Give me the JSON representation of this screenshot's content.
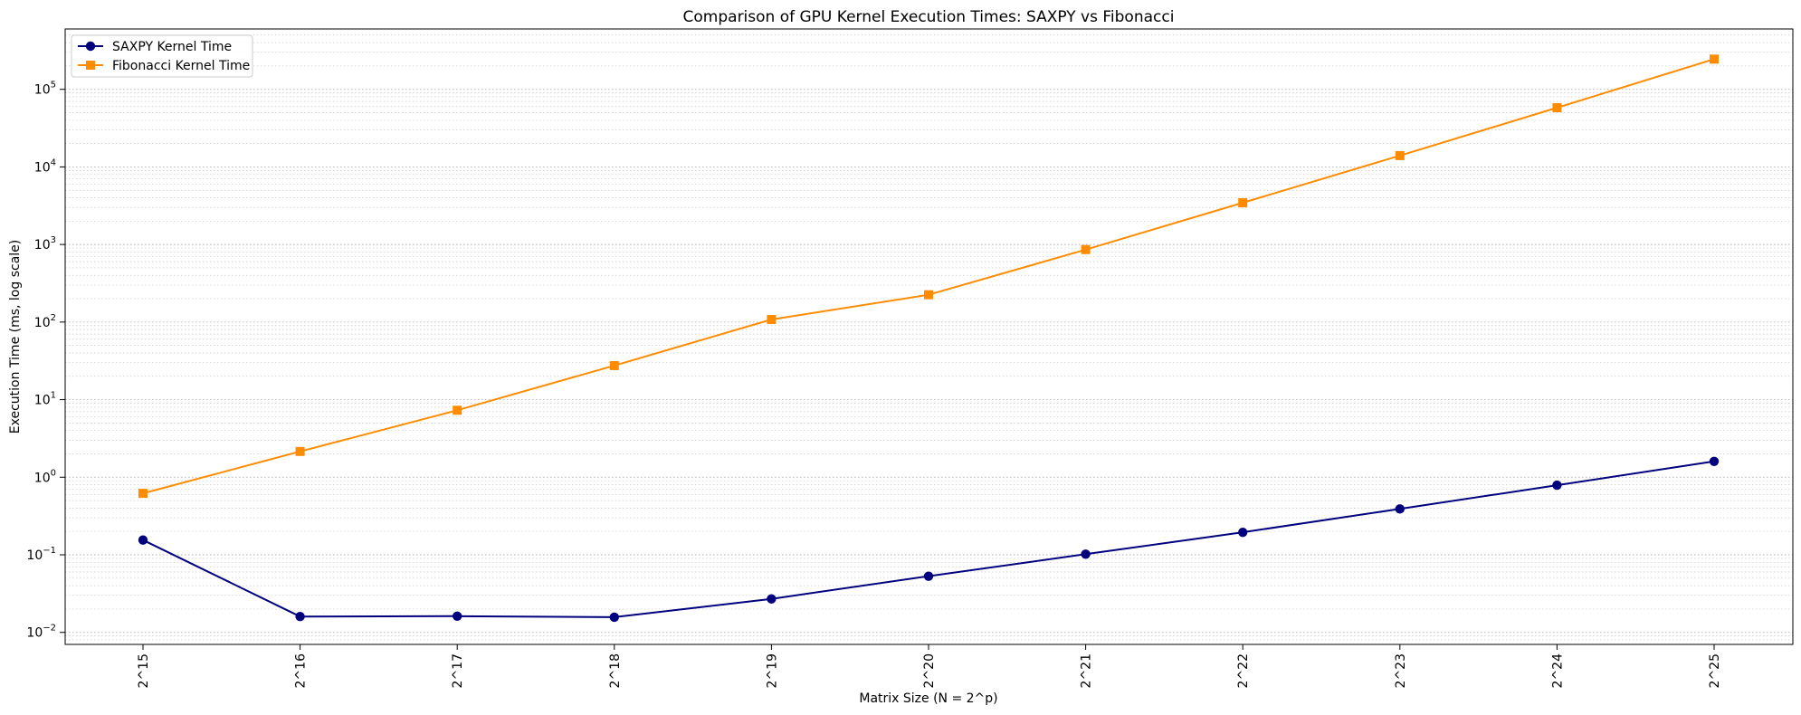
{
  "chart_data": {
    "type": "line",
    "title": "Comparison of GPU Kernel Execution Times: SAXPY vs Fibonacci",
    "xlabel": "Matrix Size (N = 2^p)",
    "ylabel": "Execution Time (ms, log scale)",
    "yscale": "log",
    "ylim": [
      0.007,
      600000
    ],
    "grid": "both-dotted",
    "legend_position": "top-left",
    "categories": [
      "2^15",
      "2^16",
      "2^17",
      "2^18",
      "2^19",
      "2^20",
      "2^21",
      "2^22",
      "2^23",
      "2^24",
      "2^25"
    ],
    "y_ticks": [
      {
        "base": "10",
        "exp": "−2",
        "value": 0.01
      },
      {
        "base": "10",
        "exp": "−1",
        "value": 0.1
      },
      {
        "base": "10",
        "exp": "0",
        "value": 1
      },
      {
        "base": "10",
        "exp": "1",
        "value": 10
      },
      {
        "base": "10",
        "exp": "2",
        "value": 100
      },
      {
        "base": "10",
        "exp": "3",
        "value": 1000
      },
      {
        "base": "10",
        "exp": "4",
        "value": 10000
      },
      {
        "base": "10",
        "exp": "5",
        "value": 100000
      }
    ],
    "series": [
      {
        "name": "SAXPY Kernel Time",
        "color": "#00007f",
        "marker": "circle",
        "values": [
          0.155,
          0.016,
          0.0162,
          0.0157,
          0.027,
          0.053,
          0.102,
          0.195,
          0.39,
          0.79,
          1.6
        ]
      },
      {
        "name": "Fibonacci Kernel Time",
        "color": "#ff8c00",
        "marker": "square",
        "values": [
          0.62,
          2.15,
          7.3,
          27.5,
          108,
          225,
          860,
          3450,
          14000,
          58000,
          245000
        ]
      }
    ]
  }
}
